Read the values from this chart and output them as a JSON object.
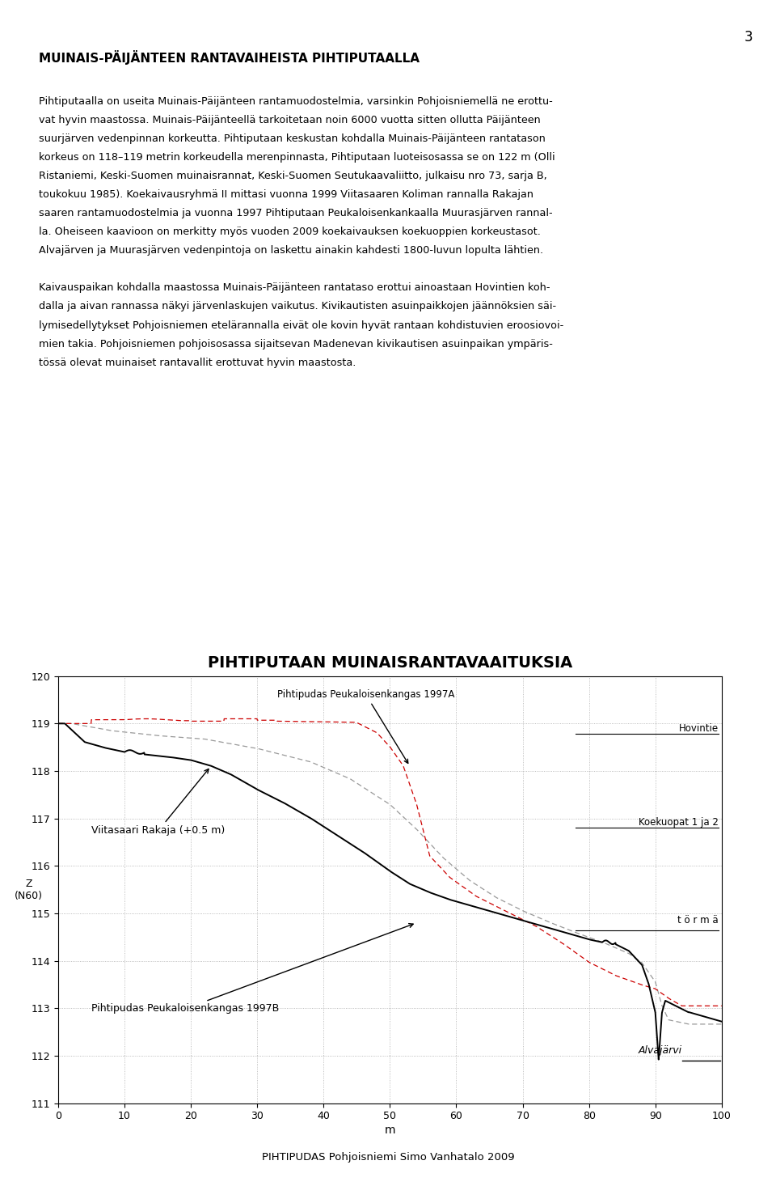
{
  "title": "PIHTIPUTAAN MUINAISRANTAVAAITUKSIA",
  "xlabel": "m",
  "ylabel_line1": "Z",
  "ylabel_line2": "(N60)",
  "xlim": [
    0,
    100
  ],
  "ylim": [
    111,
    120
  ],
  "yticks": [
    111,
    112,
    113,
    114,
    115,
    116,
    117,
    118,
    119,
    120
  ],
  "xticks": [
    0,
    10,
    20,
    30,
    40,
    50,
    60,
    70,
    80,
    90,
    100
  ],
  "page_number": "3",
  "header_text": "MUINAIS-PÄIJÄNTEEN RANTAVAIHEISTA PIHTIPUTAALLA",
  "text_lines": [
    "Pihtiputaalla on useita Muinais-Päijänteen rantamuodostelmia, varsinkin Pohjoisniemellä ne erottu-",
    "vat hyvin maastossa. Muinais-Päijänteellä tarkoitetaan noin 6000 vuotta sitten ollutta Päijänteen",
    "suurjärven vedenpinnan korkeutta. Pihtiputaan keskustan kohdalla Muinais-Päijänteen rantatason",
    "korkeus on 118–119 metrin korkeudella merenpinnasta, Pihtiputaan luoteisosassa se on 122 m (Olli",
    "Ristaniemi, Keski-Suomen muinaisrannat, Keski-Suomen Seutukaavaliitto, julkaisu nro 73, sarja B,",
    "toukokuu 1985). Koekaivausryhmä II mittasi vuonna 1999 Viitasaaren Koliman rannalla Rakajan",
    "saaren rantamuodostelmia ja vuonna 1997 Pihtiputaan Peukaloisenkankaalla Muurasjärven rannal-",
    "la. Oheiseen kaavioon on merkitty myös vuoden 2009 koekaivauksen koekuoppien korkeustasot.",
    "Alvajärven ja Muurasjärven vedenpintoja on laskettu ainakin kahdesti 1800-luvun lopulta lähtien.",
    "",
    "Kaivauspaikan kohdalla maastossa Muinais-Päijänteen rantataso erottui ainoastaan Hovintien koh-",
    "dalla ja aivan rannassa näkyi järvenlaskujen vaikutus. Kivikautisten asuinpaikkojen jäännöksien säi-",
    "lymisedellytykset Pohjoisniemen etelärannalla eivät ole kovin hyvät rantaan kohdistuvien eroosiovoi-",
    "mien takia. Pohjoisniemen pohjoisosassa sijaitsevan Madenevan kivikautisen asuinpaikan ympäris-",
    "tössä olevat muinaiset rantavallit erottuvat hyvin maastosta."
  ],
  "footer_text": "PIHTIPUDAS Pohjoisniemi Simo Vanhatalo 2009",
  "label_A": "Pihtipudas Peukaloisenkangas 1997A",
  "label_Hovintie": "Hovintie",
  "label_Viitasaari": "Viitasaari Rakaja (+0.5 m)",
  "label_Koekuopat": "Koekuopat 1 ja 2",
  "label_torma": "t ö r m ä",
  "label_B": "Pihtipudas Peukaloisenkangas 1997B",
  "label_Alvajarvi": "Alvajärvi",
  "line_color_solid": "#000000",
  "line_color_dashed_red": "#cc0000",
  "line_color_dashed_gray": "#999999",
  "background_color": "#ffffff",
  "grid_color": "#aaaaaa"
}
